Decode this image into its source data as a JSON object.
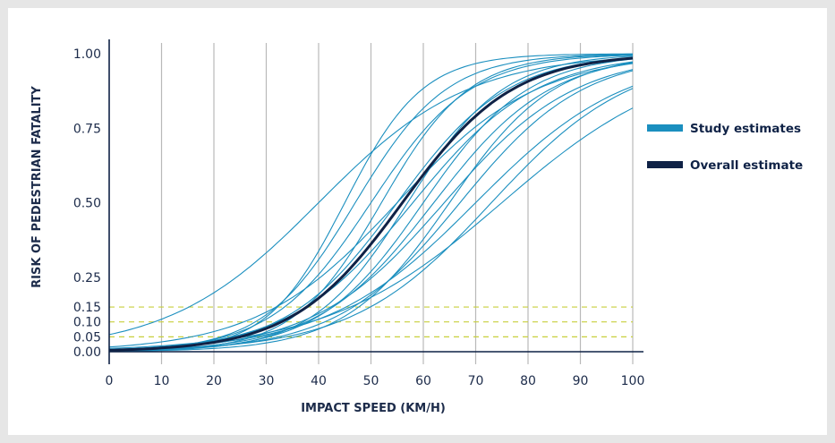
{
  "chart_data": {
    "type": "line",
    "xlabel": "IMPACT SPEED (KM/H)",
    "ylabel": "RISK OF PEDESTRIAN FATALITY",
    "xlim": [
      0,
      100
    ],
    "ylim": [
      0,
      1
    ],
    "x_ticks": [
      "0",
      "10",
      "20",
      "30",
      "40",
      "50",
      "60",
      "70",
      "80",
      "90",
      "100"
    ],
    "y_ticks": [
      {
        "value": 0.0,
        "label": "0.00"
      },
      {
        "value": 0.05,
        "label": "0.05"
      },
      {
        "value": 0.1,
        "label": "0.10"
      },
      {
        "value": 0.15,
        "label": "0.15"
      },
      {
        "value": 0.25,
        "label": "0.25"
      },
      {
        "value": 0.5,
        "label": "0.50"
      },
      {
        "value": 0.75,
        "label": "0.75"
      },
      {
        "value": 1.0,
        "label": "1.00"
      }
    ],
    "reference_lines": [
      0.05,
      0.1,
      0.15
    ],
    "grid": "vertical",
    "legend_position": "right",
    "legend": [
      {
        "label": "Study estimates",
        "color": "#1b8fbf"
      },
      {
        "label": "Overall estimate",
        "color": "#0f2246"
      }
    ],
    "study_curves": [
      {
        "midpoint": 45,
        "steepness": 0.135
      },
      {
        "midpoint": 47,
        "steepness": 0.115
      },
      {
        "midpoint": 50,
        "steepness": 0.105
      },
      {
        "midpoint": 52,
        "steepness": 0.12
      },
      {
        "midpoint": 55,
        "steepness": 0.095
      },
      {
        "midpoint": 55,
        "steepness": 0.075
      },
      {
        "midpoint": 57,
        "steepness": 0.11
      },
      {
        "midpoint": 58,
        "steepness": 0.085
      },
      {
        "midpoint": 60,
        "steepness": 0.1
      },
      {
        "midpoint": 62,
        "steepness": 0.09
      },
      {
        "midpoint": 64,
        "steepness": 0.08
      },
      {
        "midpoint": 65,
        "steepness": 0.1
      },
      {
        "midpoint": 67,
        "steepness": 0.085
      },
      {
        "midpoint": 70,
        "steepness": 0.07
      },
      {
        "midpoint": 73,
        "steepness": 0.075
      },
      {
        "midpoint": 75,
        "steepness": 0.06
      },
      {
        "midpoint": 40,
        "steepness": 0.07
      }
    ],
    "overall_curve": {
      "midpoint": 56,
      "steepness": 0.095
    }
  }
}
